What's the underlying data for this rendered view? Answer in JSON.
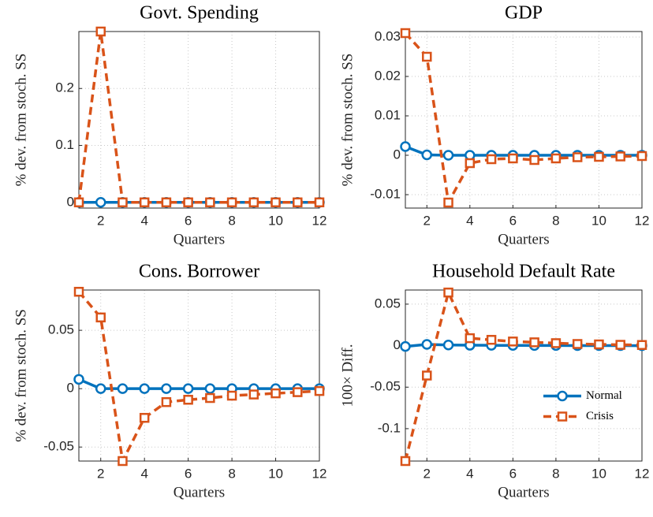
{
  "chart_data": [
    {
      "type": "line",
      "title": "Govt. Spending",
      "xlabel": "Quarters",
      "ylabel": "% dev. from stoch. SS",
      "x": [
        1,
        2,
        3,
        4,
        5,
        6,
        7,
        8,
        9,
        10,
        11,
        12
      ],
      "xlim": [
        1,
        12
      ],
      "xticks": [
        2,
        4,
        6,
        8,
        10,
        12
      ],
      "ylim": [
        -0.01,
        0.3
      ],
      "yticks": [
        0,
        0.1,
        0.2
      ],
      "grid": true,
      "series": [
        {
          "name": "Normal",
          "color": "#0072BD",
          "marker": "circle",
          "linestyle": "solid",
          "values": [
            0,
            0,
            0,
            0,
            0,
            0,
            0,
            0,
            0,
            0,
            0,
            0
          ]
        },
        {
          "name": "Crisis",
          "color": "#D95319",
          "marker": "square",
          "linestyle": "dashed",
          "values": [
            0,
            0.3,
            0,
            0,
            0,
            0,
            0,
            0,
            0,
            0,
            0,
            0
          ]
        }
      ]
    },
    {
      "type": "line",
      "title": "GDP",
      "xlabel": "Quarters",
      "ylabel": "% dev. from stoch. SS",
      "x": [
        1,
        2,
        3,
        4,
        5,
        6,
        7,
        8,
        9,
        10,
        11,
        12
      ],
      "xlim": [
        1,
        12
      ],
      "xticks": [
        2,
        4,
        6,
        8,
        10,
        12
      ],
      "ylim": [
        -0.0134,
        0.0314
      ],
      "yticks": [
        -0.01,
        0,
        0.01,
        0.02,
        0.03
      ],
      "grid": true,
      "series": [
        {
          "name": "Normal",
          "color": "#0072BD",
          "marker": "circle",
          "linestyle": "solid",
          "values": [
            0.0022,
            0.0001,
            0,
            0,
            0,
            0,
            0,
            0,
            0,
            0,
            0,
            0
          ]
        },
        {
          "name": "Crisis",
          "color": "#D95319",
          "marker": "square",
          "linestyle": "dashed",
          "values": [
            0.031,
            0.025,
            -0.012,
            -0.002,
            -0.001,
            -0.0008,
            -0.0012,
            -0.0008,
            -0.0005,
            -0.0004,
            -0.0003,
            -0.0002
          ]
        }
      ]
    },
    {
      "type": "line",
      "title": "Cons. Borrower",
      "xlabel": "Quarters",
      "ylabel": "% dev. from stoch. SS",
      "x": [
        1,
        2,
        3,
        4,
        5,
        6,
        7,
        8,
        9,
        10,
        11,
        12
      ],
      "xlim": [
        1,
        12
      ],
      "xticks": [
        2,
        4,
        6,
        8,
        10,
        12
      ],
      "ylim": [
        -0.062,
        0.0845
      ],
      "yticks": [
        -0.05,
        0,
        0.05
      ],
      "grid": true,
      "series": [
        {
          "name": "Normal",
          "color": "#0072BD",
          "marker": "circle",
          "linestyle": "solid",
          "values": [
            0.008,
            0,
            0,
            0,
            0,
            0,
            0,
            0,
            0,
            0,
            0,
            0
          ]
        },
        {
          "name": "Crisis",
          "color": "#D95319",
          "marker": "square",
          "linestyle": "dashed",
          "values": [
            0.083,
            0.061,
            -0.062,
            -0.025,
            -0.0115,
            -0.0095,
            -0.008,
            -0.006,
            -0.005,
            -0.004,
            -0.003,
            -0.002
          ]
        }
      ]
    },
    {
      "type": "line",
      "title": "Household Default Rate",
      "xlabel": "Quarters",
      "ylabel": "100× Diff.",
      "x": [
        1,
        2,
        3,
        4,
        5,
        6,
        7,
        8,
        9,
        10,
        11,
        12
      ],
      "xlim": [
        1,
        12
      ],
      "xticks": [
        2,
        4,
        6,
        8,
        10,
        12
      ],
      "ylim": [
        -0.139,
        0.067
      ],
      "yticks": [
        -0.1,
        -0.05,
        0,
        0.05
      ],
      "grid": true,
      "legend": "east",
      "series": [
        {
          "name": "Normal",
          "color": "#0072BD",
          "marker": "circle",
          "linestyle": "solid",
          "values": [
            -0.001,
            0.0015,
            0.0008,
            0.0005,
            0.0004,
            0.0003,
            0.0002,
            0.0002,
            0.0001,
            0.0001,
            0.0001,
            0
          ]
        },
        {
          "name": "Crisis",
          "color": "#D95319",
          "marker": "square",
          "linestyle": "dashed",
          "values": [
            -0.139,
            -0.036,
            0.064,
            0.009,
            0.007,
            0.005,
            0.004,
            0.003,
            0.002,
            0.0015,
            0.001,
            0.0008
          ]
        }
      ]
    }
  ]
}
